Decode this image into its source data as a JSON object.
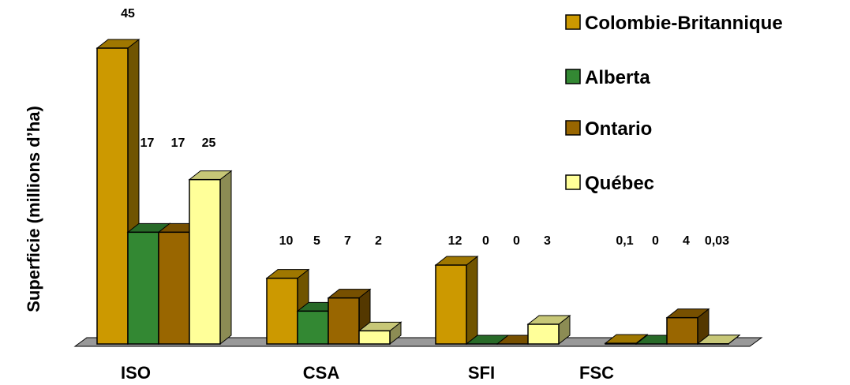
{
  "chart_data": {
    "type": "bar",
    "style": "3d-clustered-column",
    "ylabel": "Superficie (millions d’ha)",
    "xlabel": "",
    "title": "",
    "categories": [
      "ISO",
      "CSA",
      "SFI",
      "FSC"
    ],
    "series": [
      {
        "name": "Colombie-Britannique",
        "color": "#cc9900",
        "values": [
          45,
          10,
          12,
          0.1
        ],
        "labels": [
          "45",
          "10",
          "12",
          "0,1"
        ]
      },
      {
        "name": "Alberta",
        "color": "#338833",
        "values": [
          17,
          5,
          0,
          0
        ],
        "labels": [
          "17",
          "5",
          "0",
          "0"
        ]
      },
      {
        "name": "Ontario",
        "color": "#996600",
        "values": [
          17,
          7,
          0,
          4
        ],
        "labels": [
          "17",
          "7",
          "0",
          "4"
        ]
      },
      {
        "name": "Québec",
        "color": "#ffff99",
        "values": [
          25,
          2,
          3,
          0.03
        ],
        "labels": [
          "25",
          "2",
          "3",
          "0,03"
        ]
      }
    ],
    "ylim": [
      0,
      45
    ],
    "grid": false,
    "legend_position": "top-right"
  }
}
